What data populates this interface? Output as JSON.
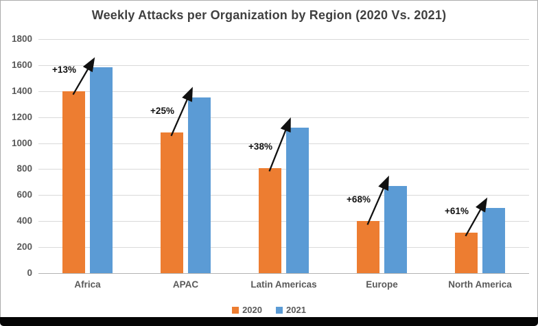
{
  "title": "Weekly Attacks per Organization by Region (2020 Vs. 2021)",
  "chart_data": {
    "type": "bar",
    "title": "Weekly Attacks per Organization by Region (2020 Vs. 2021)",
    "categories": [
      "Africa",
      "APAC",
      "Latin Americas",
      "Europe",
      "North America"
    ],
    "series": [
      {
        "name": "2020",
        "color": "#ED7D31",
        "values": [
          1400,
          1082,
          810,
          399,
          312
        ]
      },
      {
        "name": "2021",
        "color": "#5B9BD5",
        "values": [
          1582,
          1353,
          1118,
          670,
          503
        ]
      }
    ],
    "annotations": [
      {
        "category": "Africa",
        "label": "+13%"
      },
      {
        "category": "APAC",
        "label": "+25%"
      },
      {
        "category": "Latin Americas",
        "label": "+38%"
      },
      {
        "category": "Europe",
        "label": "+68%"
      },
      {
        "category": "North America",
        "label": "+61%"
      }
    ],
    "xlabel": "",
    "ylabel": "",
    "ylim": [
      0,
      1800
    ],
    "ytick_step": 200,
    "grid": true,
    "legend_position": "bottom"
  },
  "colors": {
    "bar_2020": "#ED7D31",
    "bar_2021": "#5B9BD5",
    "gridline": "#D9D9D9",
    "axis_line": "#B3B3B3",
    "tick_text": "#595959",
    "title_text": "#404040",
    "annotation_text": "#111111",
    "arrow": "#111111",
    "frame_border": "#ABABAB",
    "bottom_bar": "#050505"
  }
}
